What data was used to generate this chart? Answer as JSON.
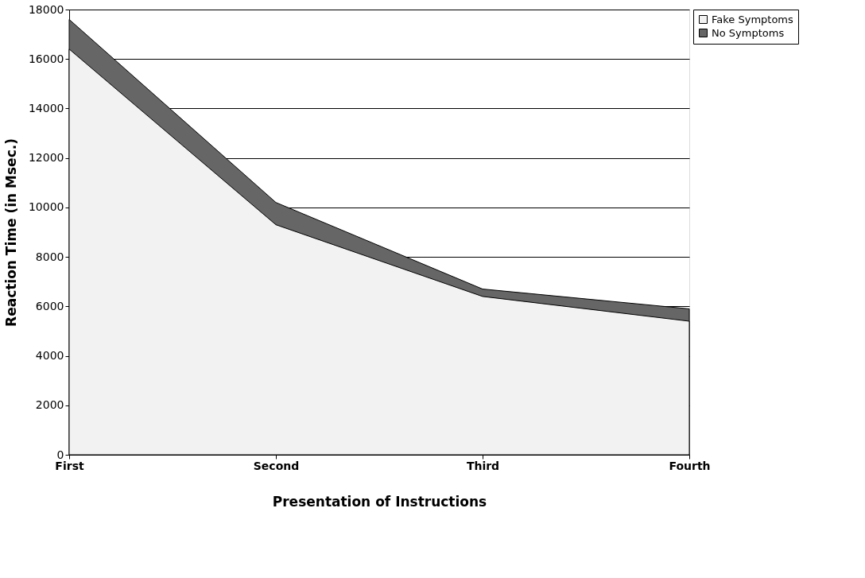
{
  "chart_data": {
    "type": "area",
    "xlabel": "Presentation of Instructions",
    "ylabel": "Reaction Time (in Msec.)",
    "categories": [
      "First",
      "Second",
      "Third",
      "Fourth"
    ],
    "series": [
      {
        "name": "Fake Symptoms",
        "color": "#f2f2f2",
        "values": [
          16400,
          9300,
          6400,
          5400
        ]
      },
      {
        "name": "No Symptoms",
        "color": "#666666",
        "values": [
          17600,
          10200,
          6700,
          5900
        ]
      }
    ],
    "ylim": [
      0,
      18000
    ],
    "yticks": [
      0,
      2000,
      4000,
      6000,
      8000,
      10000,
      12000,
      14000,
      16000,
      18000
    ],
    "grid": "y",
    "legend": "right"
  }
}
